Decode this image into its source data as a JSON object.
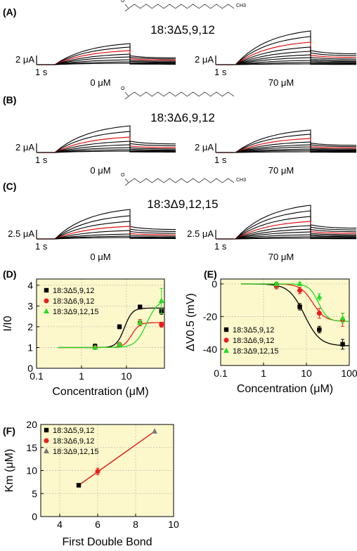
{
  "traces": {
    "panels": [
      {
        "letter": "(A)",
        "compound": "18:3Δ5,9,12",
        "scale": "2 μA",
        "time": "1 s",
        "left_conc": "0 μM",
        "right_conc": "70 μM"
      },
      {
        "letter": "(B)",
        "compound": "18:3Δ6,9,12",
        "scale": "2 μA",
        "time": "1 s",
        "left_conc": "0 μM",
        "right_conc": "70 μM"
      },
      {
        "letter": "(C)",
        "compound": "18:3Δ9,12,15",
        "scale": "2.5 μA",
        "time": "1 s",
        "left_conc": "0 μM",
        "right_conc": "70 μM"
      }
    ],
    "molecule_terminal_label": "CH3"
  },
  "chart_data": [
    {
      "panel": "(D)",
      "type": "scatter",
      "xlabel": "Concentration (μM)",
      "ylabel": "I/I0",
      "xscale": "log",
      "xlim": [
        0.1,
        70
      ],
      "ylim": [
        0,
        4.3
      ],
      "xticks": [
        "0.1",
        "1",
        "10"
      ],
      "yticks": [
        "0",
        "1",
        "2",
        "3",
        "4"
      ],
      "grid": true,
      "legend": "upper-left",
      "series": [
        {
          "name": "18:3Δ5,9,12",
          "color": "#000000",
          "marker": "square",
          "x": [
            2,
            7,
            20,
            60
          ],
          "y": [
            1.05,
            2.0,
            2.95,
            2.75
          ],
          "err": [
            0.12,
            0.1,
            0.1,
            0.15
          ]
        },
        {
          "name": "18:3Δ6,9,12",
          "color": "#ee1c1c",
          "marker": "circle",
          "x": [
            2,
            7,
            20,
            60
          ],
          "y": [
            1.0,
            1.15,
            2.2,
            2.1
          ],
          "err": [
            0.05,
            0.05,
            0.15,
            0.12
          ]
        },
        {
          "name": "18:3Δ9,12,15",
          "color": "#22dd22",
          "marker": "triangle",
          "x": [
            2,
            7,
            20,
            60
          ],
          "y": [
            1.0,
            1.15,
            2.2,
            3.25
          ],
          "err": [
            0.05,
            0.05,
            0.1,
            0.6
          ]
        }
      ]
    },
    {
      "panel": "(E)",
      "type": "scatter",
      "xlabel": "Concentration (μM)",
      "ylabel": "ΔV0.5 (mV)",
      "xscale": "log",
      "xlim": [
        0.1,
        100
      ],
      "ylim": [
        -50,
        3
      ],
      "xticks": [
        "0.1",
        "1",
        "10",
        "100"
      ],
      "yticks": [
        "0",
        "-20",
        "-40"
      ],
      "grid": true,
      "legend": "lower-left",
      "series": [
        {
          "name": "18:3Δ5,9,12",
          "color": "#000000",
          "marker": "square",
          "x": [
            2,
            7,
            20,
            70
          ],
          "y": [
            -1,
            -14,
            -28,
            -37
          ],
          "err": [
            2,
            2,
            2,
            3
          ]
        },
        {
          "name": "18:3Δ6,9,12",
          "color": "#ee1c1c",
          "marker": "circle",
          "x": [
            2,
            7,
            20,
            70
          ],
          "y": [
            -1,
            -4,
            -18,
            -22
          ],
          "err": [
            2,
            2,
            3,
            4
          ]
        },
        {
          "name": "18:3Δ9,12,15",
          "color": "#22dd22",
          "marker": "triangle",
          "x": [
            2,
            7,
            20,
            70
          ],
          "y": [
            0,
            0,
            -8,
            -21
          ],
          "err": [
            1,
            1,
            2,
            3
          ]
        }
      ]
    },
    {
      "panel": "(F)",
      "type": "scatter",
      "xlabel": "First Double Bond",
      "ylabel": "Km (μM)",
      "xlim": [
        3,
        10
      ],
      "ylim": [
        0,
        20
      ],
      "xticks": [
        "4",
        "6",
        "8",
        "10"
      ],
      "yticks": [
        "0",
        "5",
        "10",
        "15",
        "20"
      ],
      "grid": true,
      "legend": "upper-left",
      "series": [
        {
          "name": "18:3Δ5,9,12",
          "color": "#000000",
          "marker": "square",
          "x": [
            5
          ],
          "y": [
            6.8
          ]
        },
        {
          "name": "18:3Δ6,9,12",
          "color": "#ee1c1c",
          "marker": "circle",
          "x": [
            6
          ],
          "y": [
            9.8
          ],
          "err": [
            0.7
          ]
        },
        {
          "name": "18:3Δ9,12,15",
          "color": "#777777",
          "marker": "triangle",
          "x": [
            9
          ],
          "y": [
            18.5
          ]
        }
      ],
      "fit_line": {
        "color": "#dd2222",
        "x": [
          5,
          9
        ],
        "y": [
          6.8,
          18.5
        ]
      }
    }
  ]
}
